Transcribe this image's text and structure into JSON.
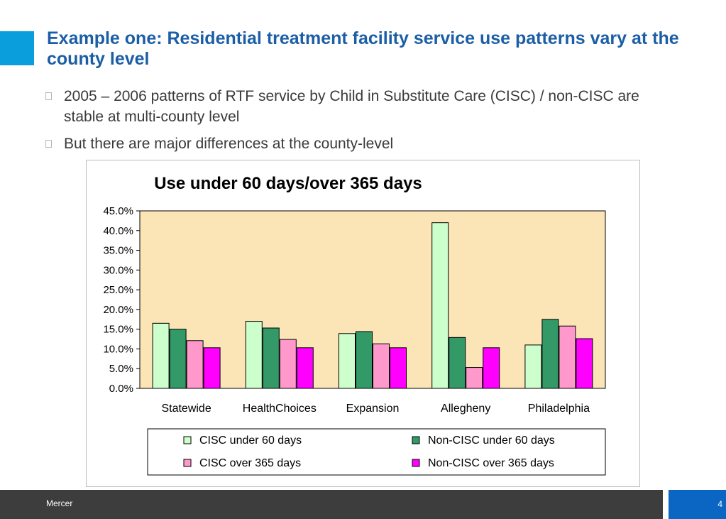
{
  "slide": {
    "title": "Example one: Residential treatment facility service use patterns vary at the county level",
    "bullets": [
      "2005 – 2006 patterns of RTF service by Child in Substitute Care (CISC) / non-CISC are stable at multi-county level",
      "But there are major differences at the county-level"
    ]
  },
  "chart_data": {
    "type": "bar",
    "title": "Use under 60 days/over 365 days",
    "categories": [
      "Statewide",
      "HealthChoices",
      "Expansion",
      "Allegheny",
      "Philadelphia"
    ],
    "series": [
      {
        "name": "CISC under 60 days",
        "color": "#ccffcc",
        "values": [
          16.5,
          17.0,
          13.9,
          42.0,
          11.0
        ]
      },
      {
        "name": "Non-CISC under 60 days",
        "color": "#339966",
        "values": [
          15.0,
          15.3,
          14.4,
          12.9,
          17.5
        ]
      },
      {
        "name": "CISC over 365 days",
        "color": "#ff99cc",
        "values": [
          12.1,
          12.4,
          11.3,
          5.3,
          15.8
        ]
      },
      {
        "name": "Non-CISC over 365 days",
        "color": "#ff00ff",
        "values": [
          10.3,
          10.3,
          10.3,
          10.3,
          12.6
        ]
      }
    ],
    "ylim": [
      0,
      45
    ],
    "yticks": [
      "0.0%",
      "5.0%",
      "10.0%",
      "15.0%",
      "20.0%",
      "25.0%",
      "30.0%",
      "35.0%",
      "40.0%",
      "45.0%"
    ],
    "xlabel": "",
    "ylabel": "",
    "grid": false,
    "plot_background": "#fbe5b6",
    "legend_position": "bottom"
  },
  "footer": {
    "company": "Mercer",
    "page_number": "4"
  },
  "colors": {
    "accent": "#0a9fdc",
    "title": "#1b5ea6",
    "footer_bar": "#3d3d3d",
    "page_box": "#0a66c2"
  }
}
